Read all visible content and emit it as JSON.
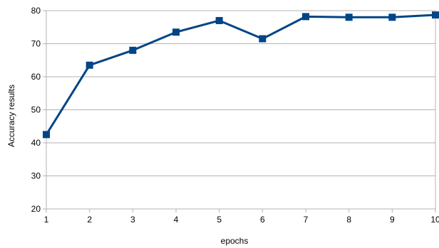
{
  "chart_data": {
    "type": "line",
    "title": "",
    "xlabel": "epochs",
    "ylabel": "Accuracy results",
    "x": [
      1,
      2,
      3,
      4,
      5,
      6,
      7,
      8,
      9,
      10
    ],
    "x_tick_labels": [
      "1",
      "2",
      "3",
      "4",
      "5",
      "6",
      "7",
      "8",
      "9",
      "10"
    ],
    "y_tick_labels": [
      "20",
      "30",
      "40",
      "50",
      "60",
      "70",
      "80"
    ],
    "ylim": [
      20,
      80
    ],
    "xlim": [
      1,
      10
    ],
    "grid": "horizontal",
    "legend": "none",
    "series": [
      {
        "values": [
          42.5,
          63.5,
          68,
          73.5,
          77,
          71.5,
          78.2,
          78,
          78,
          78.7
        ],
        "color": "#004586",
        "marker": "square"
      }
    ]
  }
}
